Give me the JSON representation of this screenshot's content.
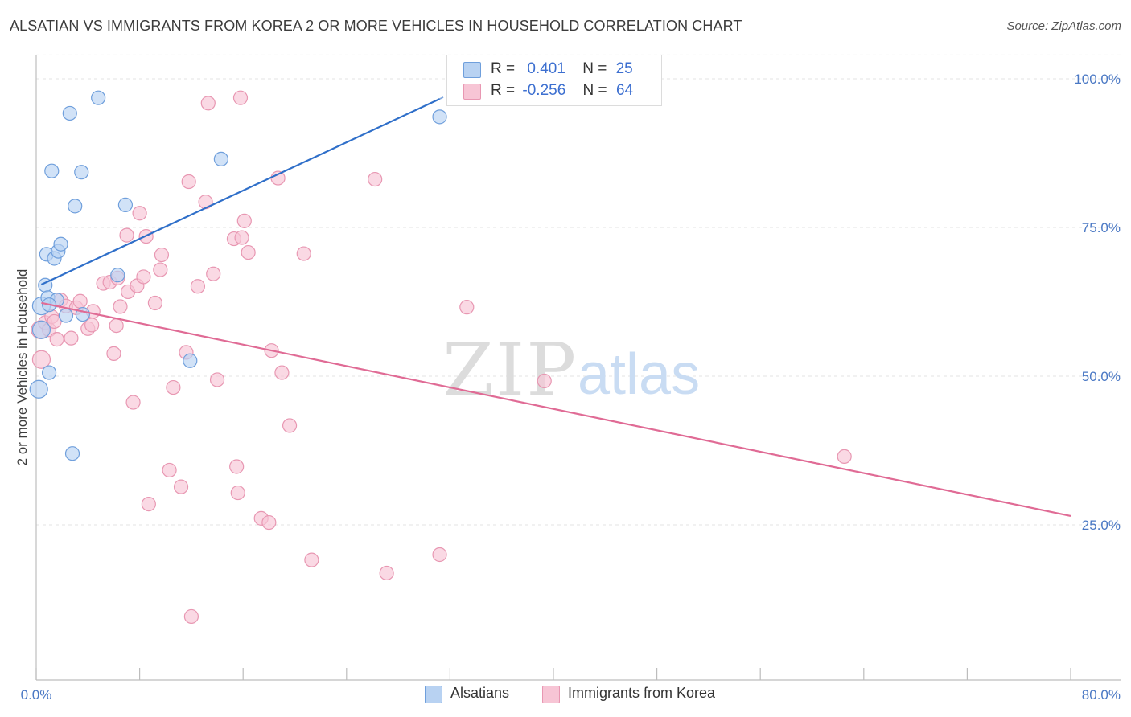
{
  "title": "ALSATIAN VS IMMIGRANTS FROM KOREA 2 OR MORE VEHICLES IN HOUSEHOLD CORRELATION CHART",
  "source": "Source: ZipAtlas.com",
  "watermark": {
    "zip": "ZIP",
    "atlas": "atlas"
  },
  "legend": {
    "rows": [
      {
        "r_label": "R =",
        "r_value": "0.401",
        "n_label": "N =",
        "n_value": "25"
      },
      {
        "r_label": "R =",
        "r_value": "-0.256",
        "n_label": "N =",
        "n_value": "64"
      }
    ]
  },
  "bottom_legend": [
    "Alsatians",
    "Immigrants from Korea"
  ],
  "colors": {
    "blue_fill": "#b8d2f2",
    "blue_stroke": "#6f9fdc",
    "blue_line": "#2f6fc9",
    "pink_fill": "#f7c5d5",
    "pink_stroke": "#e897b2",
    "pink_line": "#e06b95",
    "tick": "#4a78c4",
    "grid": "#e3e3e3"
  },
  "chart_data": {
    "type": "scatter",
    "title": "ALSATIAN VS IMMIGRANTS FROM KOREA 2 OR MORE VEHICLES IN HOUSEHOLD CORRELATION CHART",
    "xlabel": "",
    "ylabel": "2 or more Vehicles in Household",
    "xlim": [
      0,
      80
    ],
    "ylim": [
      0,
      104
    ],
    "x_tick_labels": [
      "0.0%",
      "80.0%"
    ],
    "y_ticks": [
      25,
      50,
      75,
      100
    ],
    "y_tick_labels": [
      "25.0%",
      "50.0%",
      "75.0%",
      "100.0%"
    ],
    "grid": true,
    "series": [
      {
        "name": "Alsatians",
        "color": "#b8d2f2",
        "points": [
          [
            0.2,
            47.8
          ],
          [
            0.4,
            57.8
          ],
          [
            0.4,
            61.8
          ],
          [
            0.7,
            65.3
          ],
          [
            0.8,
            70.5
          ],
          [
            0.9,
            63.2
          ],
          [
            1.0,
            50.6
          ],
          [
            1.2,
            84.5
          ],
          [
            1.4,
            69.8
          ],
          [
            1.6,
            62.8
          ],
          [
            1.7,
            71.0
          ],
          [
            1.9,
            72.2
          ],
          [
            2.3,
            60.2
          ],
          [
            2.6,
            94.2
          ],
          [
            2.8,
            37.0
          ],
          [
            3.0,
            78.6
          ],
          [
            3.5,
            84.3
          ],
          [
            3.6,
            60.4
          ],
          [
            4.8,
            96.8
          ],
          [
            6.3,
            67.0
          ],
          [
            6.9,
            78.8
          ],
          [
            11.9,
            52.6
          ],
          [
            14.3,
            86.5
          ],
          [
            31.2,
            93.6
          ],
          [
            1.0,
            62.0
          ]
        ]
      },
      {
        "name": "Immigrants from Korea",
        "color": "#f7c5d5",
        "points": [
          [
            0.3,
            57.8
          ],
          [
            0.4,
            52.8
          ],
          [
            0.7,
            59.0
          ],
          [
            1.0,
            57.8
          ],
          [
            1.2,
            60.0
          ],
          [
            1.4,
            59.2
          ],
          [
            1.6,
            56.2
          ],
          [
            1.9,
            62.8
          ],
          [
            2.3,
            61.8
          ],
          [
            2.7,
            56.4
          ],
          [
            3.1,
            61.5
          ],
          [
            3.4,
            62.6
          ],
          [
            4.0,
            58.0
          ],
          [
            4.3,
            58.6
          ],
          [
            4.4,
            60.9
          ],
          [
            5.2,
            65.6
          ],
          [
            5.7,
            65.8
          ],
          [
            6.0,
            53.8
          ],
          [
            6.2,
            58.5
          ],
          [
            6.3,
            66.5
          ],
          [
            6.5,
            61.7
          ],
          [
            7.0,
            73.7
          ],
          [
            7.1,
            64.2
          ],
          [
            7.5,
            45.6
          ],
          [
            7.8,
            65.2
          ],
          [
            8.0,
            77.4
          ],
          [
            8.3,
            66.7
          ],
          [
            8.5,
            73.5
          ],
          [
            8.7,
            28.5
          ],
          [
            9.2,
            62.3
          ],
          [
            9.6,
            67.9
          ],
          [
            9.7,
            70.4
          ],
          [
            10.3,
            34.2
          ],
          [
            10.6,
            48.1
          ],
          [
            11.2,
            31.4
          ],
          [
            11.6,
            54.0
          ],
          [
            11.8,
            82.7
          ],
          [
            12.0,
            9.6
          ],
          [
            12.5,
            65.1
          ],
          [
            13.1,
            79.3
          ],
          [
            13.3,
            95.9
          ],
          [
            13.7,
            67.2
          ],
          [
            14.0,
            49.4
          ],
          [
            15.3,
            73.1
          ],
          [
            15.5,
            34.8
          ],
          [
            15.6,
            30.4
          ],
          [
            15.8,
            96.8
          ],
          [
            15.9,
            73.3
          ],
          [
            16.1,
            76.1
          ],
          [
            16.4,
            70.8
          ],
          [
            17.4,
            26.1
          ],
          [
            18.0,
            25.4
          ],
          [
            18.2,
            54.3
          ],
          [
            18.7,
            83.3
          ],
          [
            19.0,
            50.6
          ],
          [
            19.6,
            41.7
          ],
          [
            20.7,
            70.6
          ],
          [
            21.3,
            19.1
          ],
          [
            26.2,
            83.1
          ],
          [
            27.1,
            16.9
          ],
          [
            31.2,
            20.0
          ],
          [
            33.3,
            61.6
          ],
          [
            39.3,
            49.2
          ],
          [
            62.5,
            36.5
          ]
        ]
      }
    ],
    "trendlines": [
      {
        "series": "Alsatians",
        "x": [
          0,
          38
        ],
        "y": [
          65.0,
          103.5
        ],
        "style": "solid, dashed after x=31"
      },
      {
        "series": "Immigrants from Korea",
        "x": [
          0,
          80
        ],
        "y": [
          62.5,
          26.5
        ]
      }
    ],
    "annotations": [],
    "legend_position": "top-center and bottom"
  }
}
